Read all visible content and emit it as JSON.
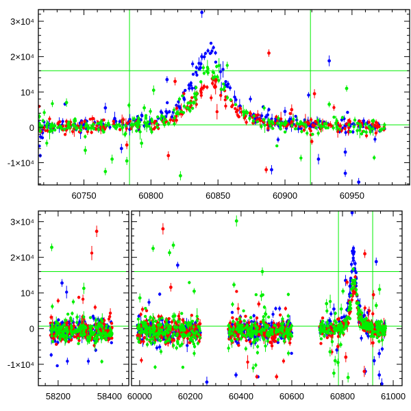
{
  "chart_data": [
    {
      "type": "scatter",
      "title": "",
      "xlabel": "",
      "ylabel": "",
      "xlim": [
        60716,
        60993
      ],
      "ylim": [
        -16300,
        33300
      ],
      "x_ticks": [
        {
          "value": 60750,
          "label": "60750"
        },
        {
          "value": 60800,
          "label": "60800"
        },
        {
          "value": 60850,
          "label": "60850"
        },
        {
          "value": 60900,
          "label": "60900"
        },
        {
          "value": 60950,
          "label": "60950"
        }
      ],
      "y_ticks": [
        {
          "value": -10000,
          "label": "-1×10⁴"
        },
        {
          "value": 0,
          "label": "0"
        },
        {
          "value": 10000,
          "label": "10⁴"
        },
        {
          "value": 20000,
          "label": "2×10⁴"
        },
        {
          "value": 30000,
          "label": "3×10⁴"
        }
      ],
      "reference_lines": {
        "horizontal": [
          16000,
          700
        ],
        "vertical": [
          60784,
          60919
        ]
      },
      "seasons": [
        [
          60716,
          60975
        ]
      ]
    },
    {
      "type": "scatter",
      "title": "",
      "xlabel": "",
      "ylabel": "",
      "broken_x_axis": true,
      "x_segments": [
        [
          58123,
          58475
        ],
        [
          59968,
          61035
        ]
      ],
      "ylim": [
        -16000,
        33000
      ],
      "x_ticks": [
        {
          "value": 58200,
          "label": "58200"
        },
        {
          "value": 58400,
          "label": "58400"
        },
        {
          "value": 60000,
          "label": "60000"
        },
        {
          "value": 60200,
          "label": "60200"
        },
        {
          "value": 60400,
          "label": "60400"
        },
        {
          "value": 60600,
          "label": "60600"
        },
        {
          "value": 60800,
          "label": "60800"
        },
        {
          "value": 61000,
          "label": "61000"
        }
      ],
      "y_ticks": [
        {
          "value": -10000,
          "label": "-1×10⁴"
        },
        {
          "value": 0,
          "label": "0"
        },
        {
          "value": 10000,
          "label": "10⁴"
        },
        {
          "value": 20000,
          "label": "2×10⁴"
        },
        {
          "value": 30000,
          "label": "3×10⁴"
        }
      ],
      "reference_lines": {
        "horizontal": [
          16000,
          700
        ],
        "vertical": [
          60784,
          60919
        ]
      },
      "seasons": [
        [
          58170,
          58410
        ],
        [
          59990,
          60240
        ],
        [
          60350,
          60600
        ],
        [
          60710,
          60970
        ]
      ]
    }
  ],
  "series": [
    {
      "name": "blue",
      "color": "#0000ff",
      "peak_time": 60843,
      "peak_flux": 22000,
      "width_days": 14,
      "scatter": 900
    },
    {
      "name": "red",
      "color": "#ff0000",
      "peak_time": 60845,
      "peak_flux": 13000,
      "width_days": 14,
      "scatter": 900
    },
    {
      "name": "green",
      "color": "#00ee00",
      "peak_time": 60845,
      "peak_flux": 16000,
      "width_days": 13,
      "scatter": 1000
    }
  ],
  "outliers": {
    "blue": [
      [
        60838,
        32500
      ],
      [
        60933,
        18800
      ],
      [
        60766,
        5500
      ],
      [
        60812,
        13500
      ],
      [
        60778,
        -6000
      ],
      [
        60890,
        -12000
      ],
      [
        60925,
        -9000
      ],
      [
        60945,
        -13000
      ],
      [
        60955,
        -15500
      ],
      [
        60945,
        -7000
      ],
      [
        58215,
        12800
      ],
      [
        60150,
        17800
      ],
      [
        60265,
        -15000
      ],
      [
        60380,
        -13000
      ],
      [
        60900,
        4500
      ]
    ],
    "red": [
      [
        60888,
        21000
      ],
      [
        60922,
        9500
      ],
      [
        60818,
        13000
      ],
      [
        60813,
        -8000
      ],
      [
        60782,
        -5000
      ],
      [
        60886,
        -12000
      ],
      [
        58350,
        27300
      ],
      [
        60092,
        28000
      ],
      [
        60123,
        11600
      ],
      [
        60470,
        6900
      ],
      [
        60540,
        -13500
      ],
      [
        60905,
        5000
      ],
      [
        60920,
        -4000
      ]
    ],
    "green": [
      [
        60737,
        7000
      ],
      [
        60802,
        10500
      ],
      [
        60822,
        -13700
      ],
      [
        60751,
        -6500
      ],
      [
        60766,
        -12500
      ],
      [
        60771,
        -9000
      ],
      [
        60782,
        -9500
      ],
      [
        60793,
        -4500
      ],
      [
        60795,
        5500
      ],
      [
        60933,
        6500
      ],
      [
        60946,
        11000
      ],
      [
        58175,
        22800
      ],
      [
        60053,
        22500
      ],
      [
        60118,
        21300
      ],
      [
        60133,
        23400
      ],
      [
        60382,
        30200
      ],
      [
        60484,
        16000
      ],
      [
        58300,
        11300
      ],
      [
        60001,
        8600
      ],
      [
        60215,
        10500
      ],
      [
        60372,
        12300
      ],
      [
        60480,
        9200
      ]
    ]
  }
}
